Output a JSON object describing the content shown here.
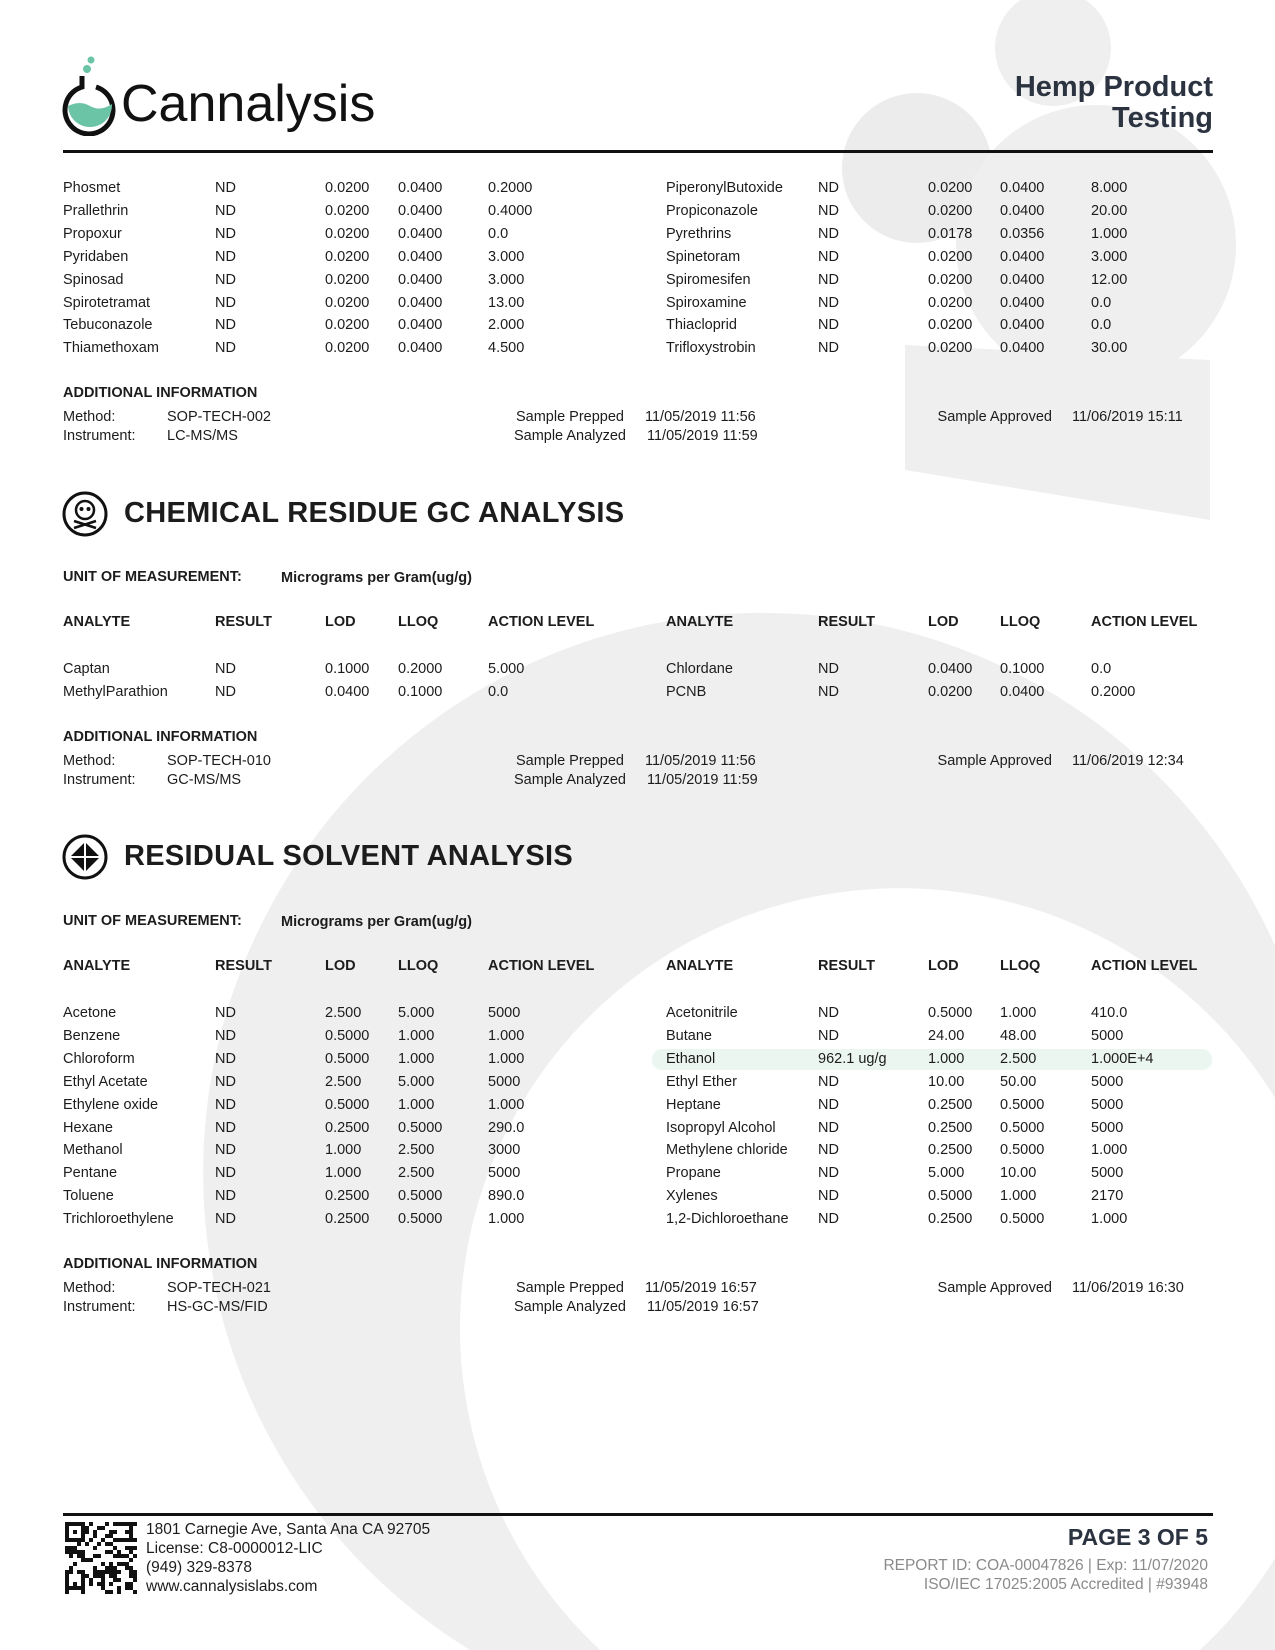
{
  "header": {
    "logo_text": "Cannalysis",
    "title_line1": "Hemp Product",
    "title_line2": "Testing"
  },
  "colors": {
    "brand_teal": "#6cc4a6",
    "title_navy": "#2b3240",
    "highlight": "#e9f5ef"
  },
  "pesticides_continued": {
    "left": [
      [
        "Phosmet",
        "ND",
        "0.0200",
        "0.0400",
        "0.2000"
      ],
      [
        "Prallethrin",
        "ND",
        "0.0200",
        "0.0400",
        "0.4000"
      ],
      [
        "Propoxur",
        "ND",
        "0.0200",
        "0.0400",
        "0.0"
      ],
      [
        "Pyridaben",
        "ND",
        "0.0200",
        "0.0400",
        "3.000"
      ],
      [
        "Spinosad",
        "ND",
        "0.0200",
        "0.0400",
        "3.000"
      ],
      [
        "Spirotetramat",
        "ND",
        "0.0200",
        "0.0400",
        "13.00"
      ],
      [
        "Tebuconazole",
        "ND",
        "0.0200",
        "0.0400",
        "2.000"
      ],
      [
        "Thiamethoxam",
        "ND",
        "0.0200",
        "0.0400",
        "4.500"
      ]
    ],
    "right": [
      [
        "PiperonylButoxide",
        "ND",
        "0.0200",
        "0.0400",
        "8.000"
      ],
      [
        "Propiconazole",
        "ND",
        "0.0200",
        "0.0400",
        "20.00"
      ],
      [
        "Pyrethrins",
        "ND",
        "0.0178",
        "0.0356",
        "1.000"
      ],
      [
        "Spinetoram",
        "ND",
        "0.0200",
        "0.0400",
        "3.000"
      ],
      [
        "Spiromesifen",
        "ND",
        "0.0200",
        "0.0400",
        "12.00"
      ],
      [
        "Spiroxamine",
        "ND",
        "0.0200",
        "0.0400",
        "0.0"
      ],
      [
        "Thiacloprid",
        "ND",
        "0.0200",
        "0.0400",
        "0.0"
      ],
      [
        "Trifloxystrobin",
        "ND",
        "0.0200",
        "0.0400",
        "30.00"
      ]
    ],
    "info": {
      "heading": "ADDITIONAL INFORMATION",
      "method_label": "Method:",
      "method": "SOP-TECH-002",
      "instrument_label": "Instrument:",
      "instrument": "LC-MS/MS",
      "prepped_label": "Sample Prepped",
      "prepped": "11/05/2019 11:56",
      "analyzed_label": "Sample Analyzed",
      "analyzed": "11/05/2019 11:59",
      "approved_label": "Sample Approved",
      "approved": "11/06/2019 15:11"
    }
  },
  "gc": {
    "title": "CHEMICAL RESIDUE GC ANALYSIS",
    "icon": "skull-crossbones-icon",
    "unit_label": "UNIT OF MEASUREMENT:",
    "unit": "Micrograms per Gram(ug/g)",
    "columns": [
      "ANALYTE",
      "RESULT",
      "LOD",
      "LLOQ",
      "ACTION LEVEL"
    ],
    "left": [
      [
        "Captan",
        "ND",
        "0.1000",
        "0.2000",
        "5.000"
      ],
      [
        "MethylParathion",
        "ND",
        "0.0400",
        "0.1000",
        "0.0"
      ]
    ],
    "right": [
      [
        "Chlordane",
        "ND",
        "0.0400",
        "0.1000",
        "0.0"
      ],
      [
        "PCNB",
        "ND",
        "0.0200",
        "0.0400",
        "0.2000"
      ]
    ],
    "info": {
      "heading": "ADDITIONAL INFORMATION",
      "method_label": "Method:",
      "method": "SOP-TECH-010",
      "instrument_label": "Instrument:",
      "instrument": "GC-MS/MS",
      "prepped_label": "Sample Prepped",
      "prepped": "11/05/2019 11:56",
      "analyzed_label": "Sample Analyzed",
      "analyzed": "11/05/2019 11:59",
      "approved_label": "Sample Approved",
      "approved": "11/06/2019 12:34"
    }
  },
  "solvent": {
    "title": "RESIDUAL SOLVENT ANALYSIS",
    "icon": "diamond-grid-icon",
    "unit_label": "UNIT OF MEASUREMENT:",
    "unit": "Micrograms per Gram(ug/g)",
    "columns": [
      "ANALYTE",
      "RESULT",
      "LOD",
      "LLOQ",
      "ACTION LEVEL"
    ],
    "left": [
      [
        "Acetone",
        "ND",
        "2.500",
        "5.000",
        "5000"
      ],
      [
        "Benzene",
        "ND",
        "0.5000",
        "1.000",
        "1.000"
      ],
      [
        "Chloroform",
        "ND",
        "0.5000",
        "1.000",
        "1.000"
      ],
      [
        "Ethyl Acetate",
        "ND",
        "2.500",
        "5.000",
        "5000"
      ],
      [
        "Ethylene oxide",
        "ND",
        "0.5000",
        "1.000",
        "1.000"
      ],
      [
        "Hexane",
        "ND",
        "0.2500",
        "0.5000",
        "290.0"
      ],
      [
        "Methanol",
        "ND",
        "1.000",
        "2.500",
        "3000"
      ],
      [
        "Pentane",
        "ND",
        "1.000",
        "2.500",
        "5000"
      ],
      [
        "Toluene",
        "ND",
        "0.2500",
        "0.5000",
        "890.0"
      ],
      [
        "Trichloroethylene",
        "ND",
        "0.2500",
        "0.5000",
        "1.000"
      ]
    ],
    "right": [
      [
        "Acetonitrile",
        "ND",
        "0.5000",
        "1.000",
        "410.0"
      ],
      [
        "Butane",
        "ND",
        "24.00",
        "48.00",
        "5000"
      ],
      [
        "Ethanol",
        "962.1 ug/g",
        "1.000",
        "2.500",
        "1.000E+4"
      ],
      [
        "Ethyl Ether",
        "ND",
        "10.00",
        "50.00",
        "5000"
      ],
      [
        "Heptane",
        "ND",
        "0.2500",
        "0.5000",
        "5000"
      ],
      [
        "Isopropyl Alcohol",
        "ND",
        "0.2500",
        "0.5000",
        "5000"
      ],
      [
        "Methylene chloride",
        "ND",
        "0.2500",
        "0.5000",
        "1.000"
      ],
      [
        "Propane",
        "ND",
        "5.000",
        "10.00",
        "5000"
      ],
      [
        "Xylenes",
        "ND",
        "0.5000",
        "1.000",
        "2170"
      ],
      [
        "1,2-Dichloroethane",
        "ND",
        "0.2500",
        "0.5000",
        "1.000"
      ]
    ],
    "highlighted_analyte": "Ethanol",
    "info": {
      "heading": "ADDITIONAL INFORMATION",
      "method_label": "Method:",
      "method": "SOP-TECH-021",
      "instrument_label": "Instrument:",
      "instrument": "HS-GC-MS/FID",
      "prepped_label": "Sample Prepped",
      "prepped": "11/05/2019 16:57",
      "analyzed_label": "Sample Analyzed",
      "analyzed": "11/05/2019 16:57",
      "approved_label": "Sample Approved",
      "approved": "11/06/2019 16:30"
    }
  },
  "footer": {
    "address": "1801 Carnegie Ave, Santa Ana  CA 92705",
    "license": "License: C8-0000012-LIC",
    "phone": "(949) 329-8378",
    "website": "www.cannalysislabs.com",
    "page": "PAGE 3 OF 5",
    "report_id": "REPORT ID: COA-00047826",
    "exp": "Exp: 11/07/2020",
    "iso": "ISO/IEC 17025:2005 Accredited",
    "accreditation_no": "#93948"
  }
}
